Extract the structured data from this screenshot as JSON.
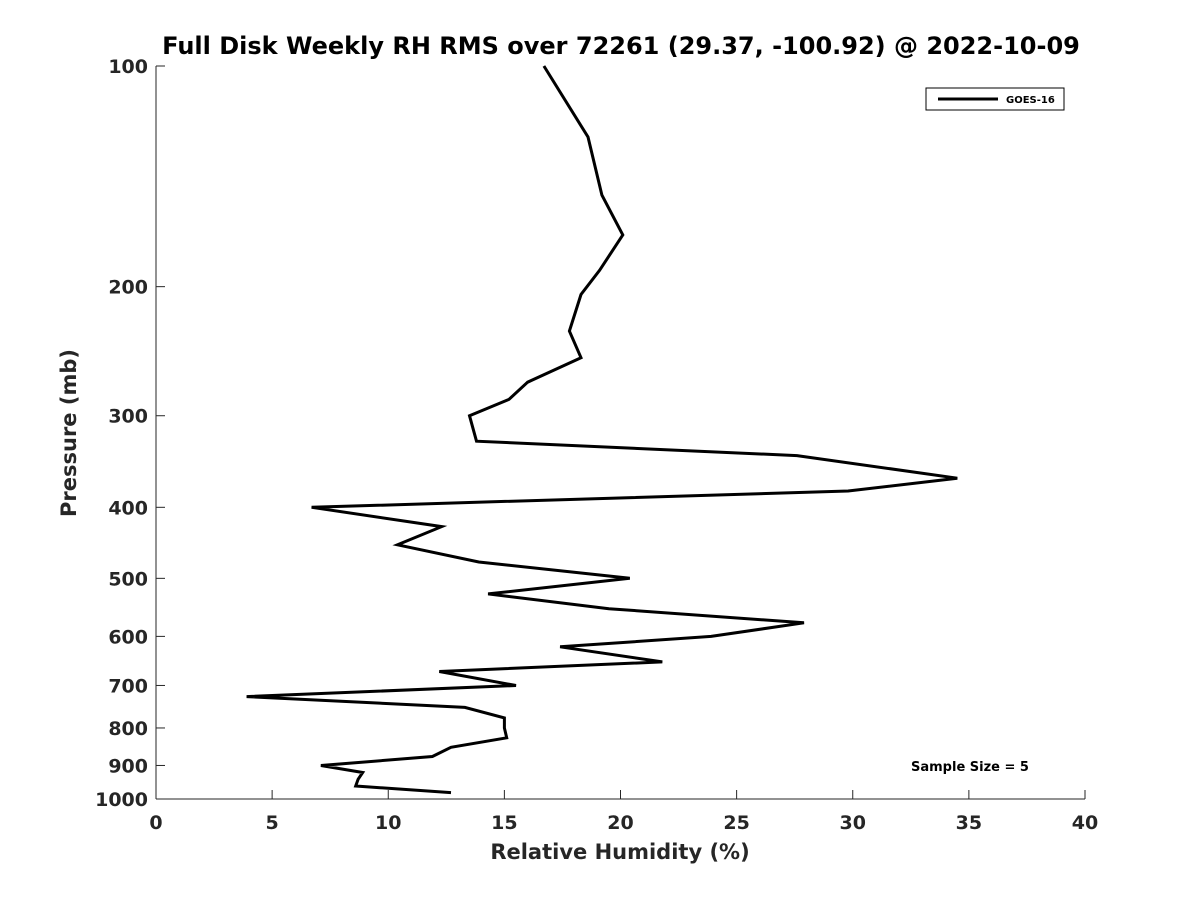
{
  "chart_data": {
    "type": "line",
    "title": "Full Disk Weekly RH RMS over 72261 (29.37, -100.92) @ 2022-10-09",
    "xlabel": "Relative Humidity (%)",
    "ylabel": "Pressure (mb)",
    "xlim": [
      0,
      40
    ],
    "ylim": [
      100,
      1000
    ],
    "y_scale": "log",
    "y_reversed": true,
    "x_ticks": [
      "0",
      "5",
      "10",
      "15",
      "20",
      "25",
      "30",
      "35",
      "40"
    ],
    "y_ticks": [
      "100",
      "200",
      "300",
      "400",
      "500",
      "600",
      "700",
      "800",
      "900",
      "1000"
    ],
    "grid": false,
    "legend_position": "top-right",
    "annotation": "Sample Size = 5",
    "series": [
      {
        "name": "GOES-16",
        "color": "#000000",
        "x": [
          16.7,
          18.6,
          19.2,
          20.1,
          19.1,
          18.3,
          17.8,
          18.3,
          16.0,
          15.2,
          13.5,
          13.8,
          27.6,
          34.5,
          29.8,
          6.7,
          12.3,
          10.4,
          13.9,
          20.4,
          14.3,
          19.5,
          27.9,
          23.9,
          17.4,
          21.8,
          12.2,
          15.5,
          3.9,
          13.3,
          15.0,
          15.0,
          15.1,
          12.7,
          11.9,
          7.1,
          8.9,
          8.7,
          8.6,
          12.7
        ],
        "y": [
          100,
          125,
          150,
          170,
          190,
          205,
          230,
          250,
          270,
          285,
          300,
          325,
          340,
          365,
          380,
          400,
          425,
          450,
          475,
          500,
          525,
          550,
          575,
          600,
          620,
          650,
          670,
          700,
          725,
          750,
          775,
          800,
          825,
          850,
          875,
          900,
          920,
          940,
          960,
          980
        ]
      }
    ]
  }
}
